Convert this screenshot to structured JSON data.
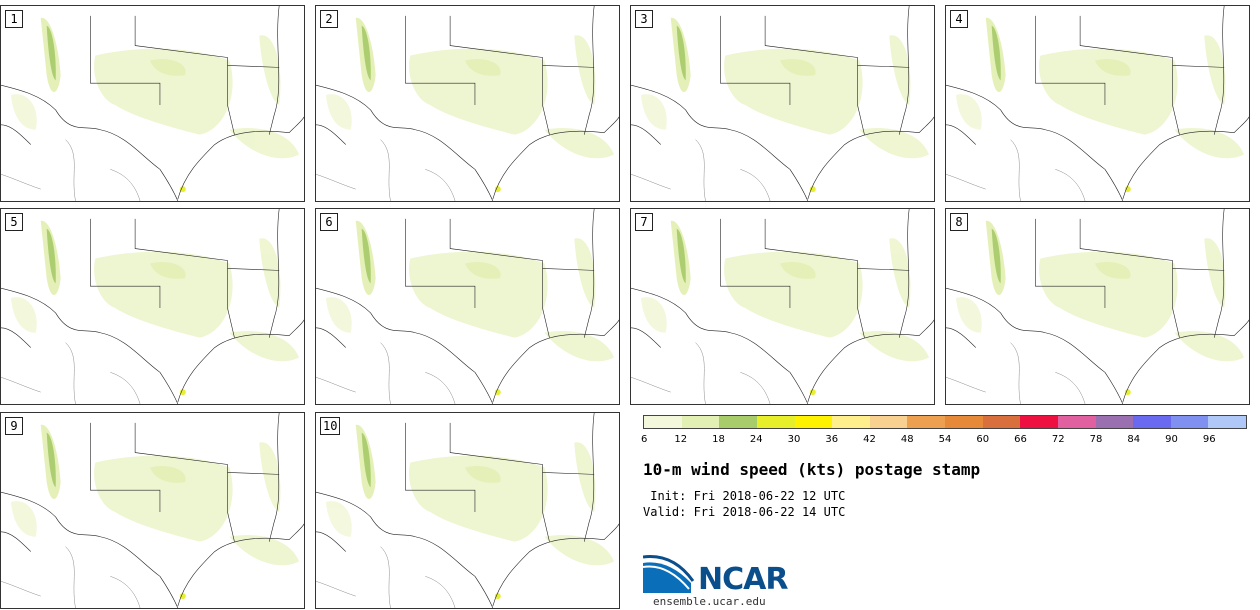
{
  "title": "10-m wind speed (kts) postage stamp",
  "init_line": " Init: Fri 2018-06-22 12 UTC",
  "valid_line": "Valid: Fri 2018-06-22 14 UTC",
  "logo": {
    "name": "NCAR",
    "url": "ensemble.ucar.edu",
    "icon": "ncar-logo-swoosh"
  },
  "members": [
    "1",
    "2",
    "3",
    "4",
    "5",
    "6",
    "7",
    "8",
    "9",
    "10"
  ],
  "colorbar": {
    "ticks": [
      "6",
      "12",
      "18",
      "24",
      "30",
      "36",
      "42",
      "48",
      "54",
      "60",
      "66",
      "72",
      "78",
      "84",
      "90",
      "96"
    ],
    "colors": [
      "#f3f8dc",
      "#e3f0b4",
      "#a8cc6a",
      "#e6ef2a",
      "#fff200",
      "#ffee8c",
      "#f8d090",
      "#eda050",
      "#e68a3a",
      "#d96f3c",
      "#ee1040",
      "#e060a0",
      "#9a70b0",
      "#6a6af0",
      "#8090f0",
      "#b0c8f8"
    ]
  }
}
